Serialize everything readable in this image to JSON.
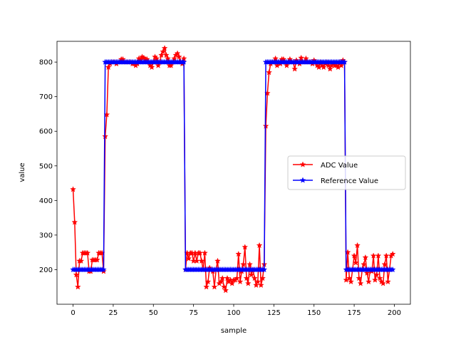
{
  "chart_data": {
    "type": "line",
    "title": "",
    "xlabel": "sample",
    "ylabel": "value",
    "xlim": [
      -10,
      210
    ],
    "ylim": [
      100,
      860
    ],
    "xticks": [
      0,
      25,
      50,
      75,
      100,
      125,
      150,
      175,
      200
    ],
    "yticks": [
      200,
      300,
      400,
      500,
      600,
      700,
      800
    ],
    "grid": false,
    "legend_position": "center-right",
    "marker": "star",
    "series": [
      {
        "name": "ADC Value",
        "color": "#ff0000",
        "x": [
          0,
          1,
          2,
          3,
          4,
          5,
          6,
          7,
          8,
          9,
          10,
          11,
          12,
          13,
          14,
          15,
          16,
          17,
          18,
          19,
          20,
          21,
          22,
          23,
          24,
          25,
          26,
          27,
          28,
          29,
          30,
          31,
          32,
          33,
          34,
          35,
          36,
          37,
          38,
          39,
          40,
          41,
          42,
          43,
          44,
          45,
          46,
          47,
          48,
          49,
          50,
          51,
          52,
          53,
          54,
          55,
          56,
          57,
          58,
          59,
          60,
          61,
          62,
          63,
          64,
          65,
          66,
          67,
          68,
          69,
          70,
          71,
          72,
          73,
          74,
          75,
          76,
          77,
          78,
          79,
          80,
          81,
          82,
          83,
          84,
          85,
          86,
          87,
          88,
          89,
          90,
          91,
          92,
          93,
          94,
          95,
          96,
          97,
          98,
          99,
          100,
          101,
          102,
          103,
          104,
          105,
          106,
          107,
          108,
          109,
          110,
          111,
          112,
          113,
          114,
          115,
          116,
          117,
          118,
          119,
          120,
          121,
          122,
          123,
          124,
          125,
          126,
          127,
          128,
          129,
          130,
          131,
          132,
          133,
          134,
          135,
          136,
          137,
          138,
          139,
          140,
          141,
          142,
          143,
          144,
          145,
          146,
          147,
          148,
          149,
          150,
          151,
          152,
          153,
          154,
          155,
          156,
          157,
          158,
          159,
          160,
          161,
          162,
          163,
          164,
          165,
          166,
          167,
          168,
          169,
          170,
          171,
          172,
          173,
          174,
          175,
          176,
          177,
          178,
          179,
          180,
          181,
          182,
          183,
          184,
          185,
          186,
          187,
          188,
          189,
          190,
          191,
          192,
          193,
          194,
          195,
          196,
          197,
          198,
          199
        ],
        "y": [
          432,
          337,
          185,
          150,
          225,
          225,
          248,
          248,
          248,
          248,
          195,
          195,
          228,
          228,
          228,
          228,
          248,
          248,
          248,
          195,
          585,
          648,
          785,
          795,
          800,
          800,
          800,
          795,
          800,
          800,
          808,
          808,
          800,
          800,
          800,
          800,
          800,
          795,
          795,
          790,
          795,
          810,
          808,
          815,
          812,
          808,
          808,
          800,
          790,
          785,
          800,
          815,
          810,
          790,
          800,
          820,
          830,
          840,
          820,
          810,
          790,
          790,
          800,
          810,
          820,
          825,
          815,
          800,
          795,
          810,
          200,
          248,
          232,
          248,
          248,
          225,
          248,
          225,
          248,
          248,
          225,
          200,
          248,
          150,
          165,
          205,
          200,
          195,
          150,
          200,
          225,
          160,
          165,
          175,
          150,
          140,
          175,
          165,
          170,
          160,
          170,
          170,
          175,
          245,
          165,
          195,
          215,
          265,
          175,
          160,
          215,
          185,
          200,
          175,
          155,
          165,
          270,
          155,
          175,
          215,
          615,
          710,
          770,
          795,
          800,
          800,
          810,
          790,
          800,
          795,
          808,
          808,
          800,
          790,
          800,
          808,
          800,
          800,
          780,
          805,
          800,
          795,
          812,
          800,
          800,
          810,
          800,
          800,
          800,
          795,
          805,
          800,
          790,
          785,
          800,
          790,
          785,
          795,
          800,
          790,
          780,
          790,
          795,
          790,
          790,
          785,
          800,
          790,
          805,
          800,
          170,
          250,
          175,
          165,
          200,
          240,
          220,
          270,
          175,
          160,
          200,
          215,
          235,
          190,
          165,
          200,
          195,
          240,
          170,
          185,
          240,
          175,
          165,
          160,
          215,
          240,
          165,
          200,
          240,
          245
        ]
      },
      {
        "name": "Reference Value",
        "color": "#0000ff",
        "x": [
          0,
          1,
          2,
          3,
          4,
          5,
          6,
          7,
          8,
          9,
          10,
          11,
          12,
          13,
          14,
          15,
          16,
          17,
          18,
          19,
          20,
          21,
          22,
          23,
          24,
          25,
          26,
          27,
          28,
          29,
          30,
          31,
          32,
          33,
          34,
          35,
          36,
          37,
          38,
          39,
          40,
          41,
          42,
          43,
          44,
          45,
          46,
          47,
          48,
          49,
          50,
          51,
          52,
          53,
          54,
          55,
          56,
          57,
          58,
          59,
          60,
          61,
          62,
          63,
          64,
          65,
          66,
          67,
          68,
          69,
          70,
          71,
          72,
          73,
          74,
          75,
          76,
          77,
          78,
          79,
          80,
          81,
          82,
          83,
          84,
          85,
          86,
          87,
          88,
          89,
          90,
          91,
          92,
          93,
          94,
          95,
          96,
          97,
          98,
          99,
          100,
          101,
          102,
          103,
          104,
          105,
          106,
          107,
          108,
          109,
          110,
          111,
          112,
          113,
          114,
          115,
          116,
          117,
          118,
          119,
          120,
          121,
          122,
          123,
          124,
          125,
          126,
          127,
          128,
          129,
          130,
          131,
          132,
          133,
          134,
          135,
          136,
          137,
          138,
          139,
          140,
          141,
          142,
          143,
          144,
          145,
          146,
          147,
          148,
          149,
          150,
          151,
          152,
          153,
          154,
          155,
          156,
          157,
          158,
          159,
          160,
          161,
          162,
          163,
          164,
          165,
          166,
          167,
          168,
          169,
          170,
          171,
          172,
          173,
          174,
          175,
          176,
          177,
          178,
          179,
          180,
          181,
          182,
          183,
          184,
          185,
          186,
          187,
          188,
          189,
          190,
          191,
          192,
          193,
          194,
          195,
          196,
          197,
          198,
          199
        ],
        "y": [
          200,
          200,
          200,
          200,
          200,
          200,
          200,
          200,
          200,
          200,
          200,
          200,
          200,
          200,
          200,
          200,
          200,
          200,
          200,
          200,
          800,
          800,
          800,
          800,
          800,
          800,
          800,
          800,
          800,
          800,
          800,
          800,
          800,
          800,
          800,
          800,
          800,
          800,
          800,
          800,
          800,
          800,
          800,
          800,
          800,
          800,
          800,
          800,
          800,
          800,
          800,
          800,
          800,
          800,
          800,
          800,
          800,
          800,
          800,
          800,
          800,
          800,
          800,
          800,
          800,
          800,
          800,
          800,
          800,
          800,
          200,
          200,
          200,
          200,
          200,
          200,
          200,
          200,
          200,
          200,
          200,
          200,
          200,
          200,
          200,
          200,
          200,
          200,
          200,
          200,
          200,
          200,
          200,
          200,
          200,
          200,
          200,
          200,
          200,
          200,
          200,
          200,
          200,
          200,
          200,
          200,
          200,
          200,
          200,
          200,
          200,
          200,
          200,
          200,
          200,
          200,
          200,
          200,
          200,
          200,
          800,
          800,
          800,
          800,
          800,
          800,
          800,
          800,
          800,
          800,
          800,
          800,
          800,
          800,
          800,
          800,
          800,
          800,
          800,
          800,
          800,
          800,
          800,
          800,
          800,
          800,
          800,
          800,
          800,
          800,
          800,
          800,
          800,
          800,
          800,
          800,
          800,
          800,
          800,
          800,
          800,
          800,
          800,
          800,
          800,
          800,
          800,
          800,
          800,
          800,
          200,
          200,
          200,
          200,
          200,
          200,
          200,
          200,
          200,
          200,
          200,
          200,
          200,
          200,
          200,
          200,
          200,
          200,
          200,
          200,
          200,
          200,
          200,
          200,
          200,
          200,
          200,
          200,
          200,
          200
        ]
      }
    ]
  }
}
